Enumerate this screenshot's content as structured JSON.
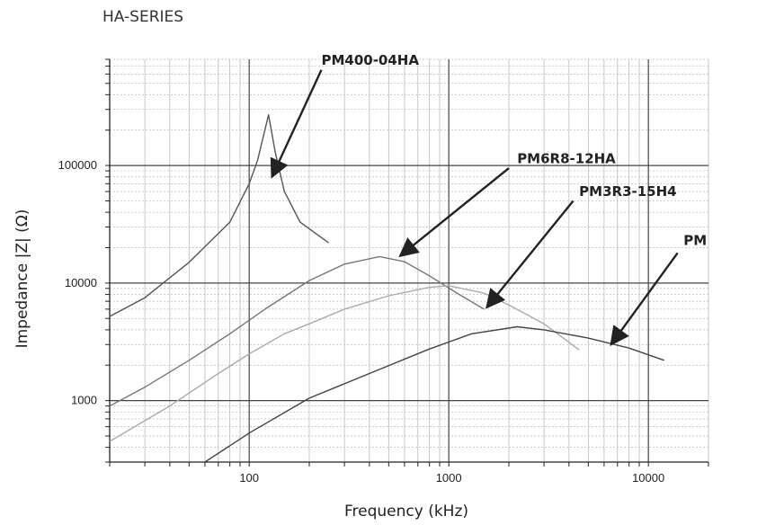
{
  "chart_data": {
    "type": "line",
    "title": "HA-SERIES",
    "xlabel": "Frequency (kHz)",
    "ylabel": "Impedance |Z| (Ω)",
    "x_scale": "log",
    "y_scale": "log",
    "xlim": [
      20,
      20000
    ],
    "ylim": [
      300,
      800000
    ],
    "x_ticks": [
      {
        "value": 100,
        "label": "100"
      },
      {
        "value": 1000,
        "label": "1000"
      },
      {
        "value": 10000,
        "label": "10000"
      }
    ],
    "y_ticks": [
      {
        "value": 1000,
        "label": "1000"
      },
      {
        "value": 10000,
        "label": "10000"
      },
      {
        "value": 100000,
        "label": "100000"
      }
    ],
    "grid": true,
    "series": [
      {
        "name": "PM400-04HA",
        "color": "#555555",
        "points": [
          [
            20,
            5200
          ],
          [
            30,
            7500
          ],
          [
            50,
            15000
          ],
          [
            80,
            33000
          ],
          [
            100,
            70000
          ],
          [
            110,
            110000
          ],
          [
            125,
            270000
          ],
          [
            135,
            130000
          ],
          [
            150,
            60000
          ],
          [
            180,
            33000
          ],
          [
            250,
            22000
          ]
        ],
        "label_at": [
          230,
          720000
        ],
        "arrow_from": [
          230,
          650000
        ],
        "arrow_to": [
          130,
          80000
        ]
      },
      {
        "name": "PM6R8-12HA",
        "color": "#777777",
        "points": [
          [
            20,
            900
          ],
          [
            30,
            1300
          ],
          [
            50,
            2200
          ],
          [
            80,
            3700
          ],
          [
            120,
            6000
          ],
          [
            200,
            10500
          ],
          [
            300,
            14500
          ],
          [
            450,
            16800
          ],
          [
            600,
            15200
          ],
          [
            800,
            11500
          ],
          [
            1100,
            8200
          ],
          [
            1500,
            6000
          ]
        ],
        "label_at": [
          2200,
          105000
        ],
        "arrow_from": [
          2000,
          95000
        ],
        "arrow_to": [
          570,
          17000
        ]
      },
      {
        "name": "PM3R3-15H4",
        "color": "#aaaaaa",
        "points": [
          [
            20,
            450
          ],
          [
            40,
            900
          ],
          [
            70,
            1700
          ],
          [
            100,
            2500
          ],
          [
            150,
            3700
          ],
          [
            200,
            4500
          ],
          [
            300,
            6000
          ],
          [
            500,
            7800
          ],
          [
            800,
            9200
          ],
          [
            1000,
            9500
          ],
          [
            1500,
            8200
          ],
          [
            2000,
            6500
          ],
          [
            3000,
            4500
          ],
          [
            4500,
            2700
          ]
        ],
        "label_at": [
          4500,
          55000
        ],
        "arrow_from": [
          4200,
          50000
        ],
        "arrow_to": [
          1550,
          6200
        ]
      },
      {
        "name": "PM",
        "color": "#444444",
        "points": [
          [
            60,
            300
          ],
          [
            100,
            530
          ],
          [
            200,
            1050
          ],
          [
            400,
            1700
          ],
          [
            800,
            2750
          ],
          [
            1300,
            3700
          ],
          [
            2200,
            4250
          ],
          [
            3000,
            4000
          ],
          [
            5000,
            3400
          ],
          [
            8000,
            2800
          ],
          [
            12000,
            2200
          ]
        ],
        "label_at": [
          15000,
          21000
        ],
        "arrow_from": [
          14000,
          18000
        ],
        "arrow_to": [
          6500,
          3000
        ]
      }
    ]
  }
}
